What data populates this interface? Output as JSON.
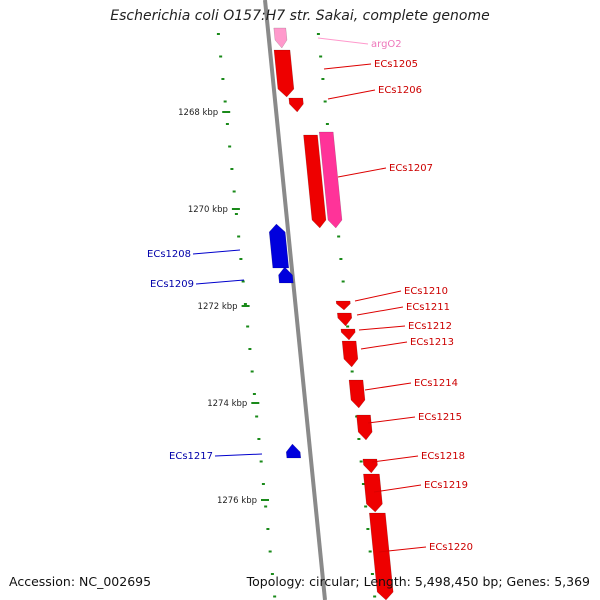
{
  "title": "Escherichia coli O157:H7 str. Sakai, complete genome",
  "footer": {
    "accession": "Accession: NC_002695",
    "summary": "Topology: circular; Length: 5,498,450 bp; Genes: 5,369"
  },
  "colors": {
    "backbone": "#8a8a8a",
    "tick": "#1a8a1a",
    "forward_gene": "#ee0000",
    "reverse_gene": "#0000dd",
    "rna_gene": "#ff3399",
    "trna_gene": "#ff99cc"
  },
  "ticks": [
    {
      "label": "1268 kbp"
    },
    {
      "label": "1270 kbp"
    },
    {
      "label": "1272 kbp"
    },
    {
      "label": "1274 kbp"
    },
    {
      "label": "1276 kbp"
    }
  ],
  "genes": [
    {
      "name": "argO2",
      "strand": "forward",
      "type": "tRNA"
    },
    {
      "name": "ECs1205",
      "strand": "forward",
      "type": "CDS"
    },
    {
      "name": "ECs1206",
      "strand": "forward",
      "type": "CDS"
    },
    {
      "name": "ECs1207",
      "strand": "forward",
      "type": "CDS"
    },
    {
      "name": "ECs1208",
      "strand": "reverse",
      "type": "CDS"
    },
    {
      "name": "ECs1209",
      "strand": "reverse",
      "type": "CDS"
    },
    {
      "name": "ECs1210",
      "strand": "forward",
      "type": "CDS"
    },
    {
      "name": "ECs1211",
      "strand": "forward",
      "type": "CDS"
    },
    {
      "name": "ECs1212",
      "strand": "forward",
      "type": "CDS"
    },
    {
      "name": "ECs1213",
      "strand": "forward",
      "type": "CDS"
    },
    {
      "name": "ECs1214",
      "strand": "forward",
      "type": "CDS"
    },
    {
      "name": "ECs1215",
      "strand": "forward",
      "type": "CDS"
    },
    {
      "name": "ECs1217",
      "strand": "reverse",
      "type": "CDS"
    },
    {
      "name": "ECs1218",
      "strand": "forward",
      "type": "CDS"
    },
    {
      "name": "ECs1219",
      "strand": "forward",
      "type": "CDS"
    },
    {
      "name": "ECs1220",
      "strand": "forward",
      "type": "CDS"
    }
  ]
}
